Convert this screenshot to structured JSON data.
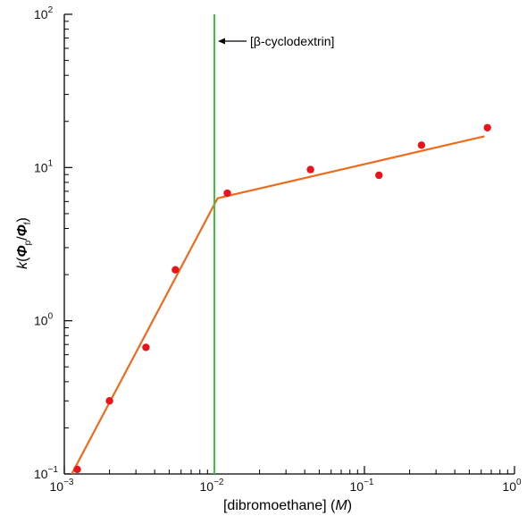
{
  "chart_data": {
    "type": "scatter",
    "x_scale": "log",
    "y_scale": "log",
    "xlim": [
      0.001,
      1
    ],
    "ylim": [
      0.1,
      100
    ],
    "grid": false,
    "xlabel": {
      "text": "[dibromoethane] (",
      "italic": "M",
      "close": ")"
    },
    "ylabel": {
      "k": "k",
      "open": "(",
      "phi_p": "Φ",
      "sub_p": "p",
      "slash": "/",
      "phi_f": "Φ",
      "sub_f": "f",
      "close": ")"
    },
    "x_ticks": [
      {
        "value": 0.001,
        "base": "10",
        "exp": "−3"
      },
      {
        "value": 0.01,
        "base": "10",
        "exp": "−2"
      },
      {
        "value": 0.1,
        "base": "10",
        "exp": "−1"
      },
      {
        "value": 1,
        "base": "10",
        "exp": "0"
      }
    ],
    "y_ticks": [
      {
        "value": 0.1,
        "base": "10",
        "exp": "−1"
      },
      {
        "value": 1,
        "base": "10",
        "exp": "0"
      },
      {
        "value": 10,
        "base": "10",
        "exp": "1"
      },
      {
        "value": 100,
        "base": "10",
        "exp": "2"
      }
    ],
    "series": [
      {
        "kind": "scatter",
        "color": "#e8141c",
        "points": [
          [
            0.00122,
            0.107
          ],
          [
            0.002,
            0.3
          ],
          [
            0.0035,
            0.67
          ],
          [
            0.0055,
            2.15
          ],
          [
            0.0122,
            6.8
          ],
          [
            0.0437,
            9.7
          ],
          [
            0.125,
            8.9
          ],
          [
            0.24,
            14.0
          ],
          [
            0.66,
            18.2
          ]
        ]
      },
      {
        "kind": "line",
        "color": "#ee6a1c",
        "points": [
          [
            0.00112,
            0.1
          ],
          [
            0.0105,
            6.3
          ],
          [
            0.63,
            16.0
          ]
        ]
      },
      {
        "kind": "vline",
        "color": "#3fc43f",
        "x": 0.01
      }
    ],
    "annotations": [
      {
        "text": "[β-cyclodextrin]",
        "points_to_x": 0.01
      }
    ]
  }
}
